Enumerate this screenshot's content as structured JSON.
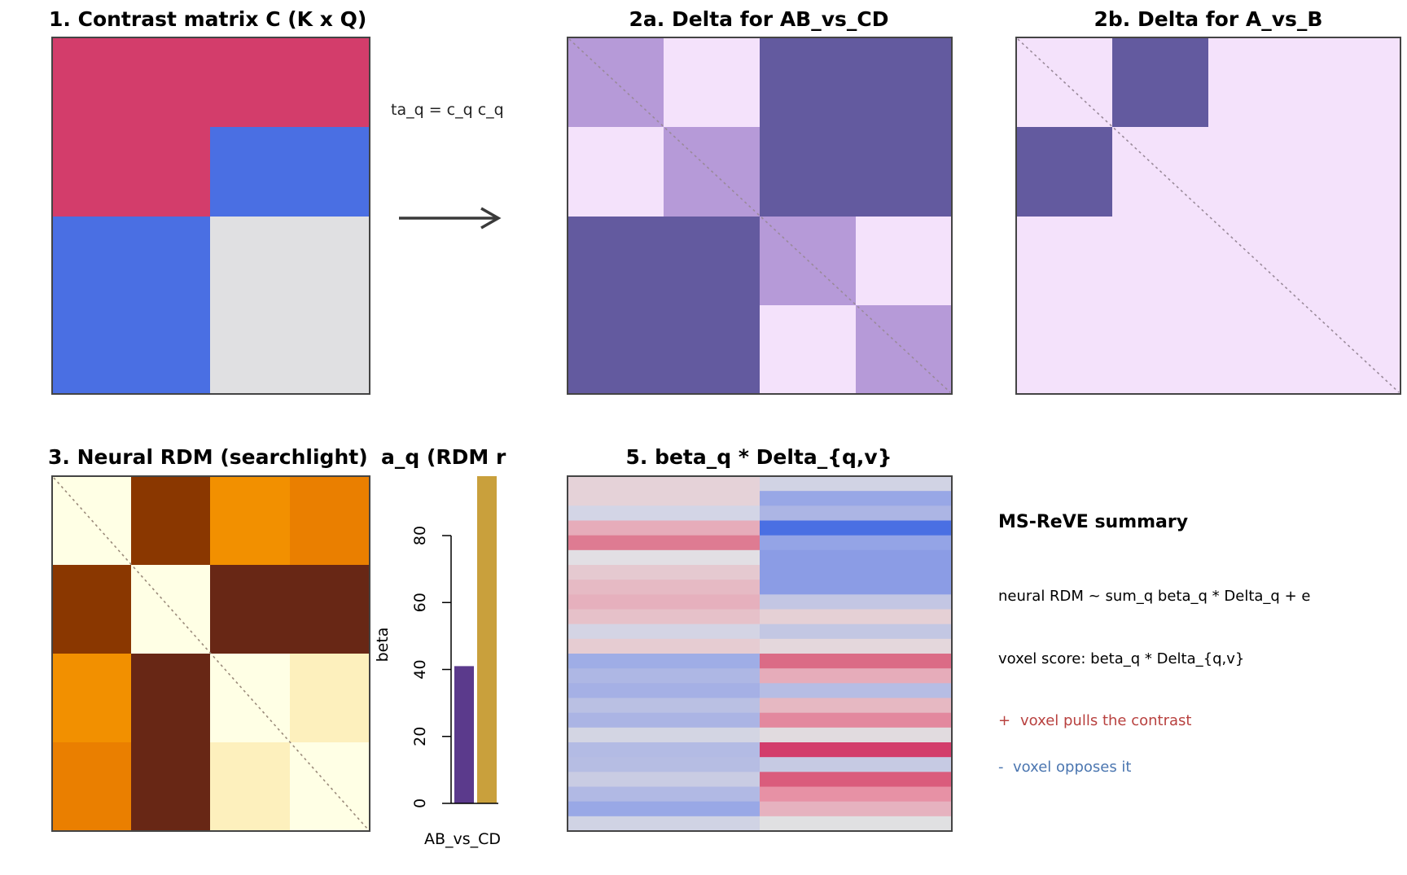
{
  "panels": {
    "contrast": {
      "title": "1. Contrast matrix C (K x Q)"
    },
    "delta_ab": {
      "title": "2a. Delta for AB_vs_CD"
    },
    "delta_a": {
      "title": "2b. Delta for A_vs_B"
    },
    "rdm": {
      "title": "3. Neural RDM (searchlight)"
    },
    "beta": {
      "title": "a_q  (RDM r"
    },
    "voxel": {
      "title": "5. beta_q * Delta_{q,v}"
    }
  },
  "arrow_label": "ta_q = c_q c_q",
  "colors": {
    "red": "#d33d6b",
    "blue": "#4a6fe3",
    "grey": "#e0e0e2",
    "dark_purple": "#635a9f",
    "mid_purple": "#b69ad8",
    "light_purple": "#f4e2fb",
    "bar_purple": "#5b3a8c",
    "bar_gold": "#c9a03c"
  },
  "chart_data": {
    "type": "bar",
    "categories": [
      "",
      ""
    ],
    "values": [
      41,
      98
    ],
    "x_tick_label": "AB_vs_CD",
    "ylabel": "beta",
    "yticks": [
      0,
      20,
      40,
      60,
      80
    ]
  },
  "summary": {
    "title": "MS-ReVE summary",
    "line1": "neural RDM ~ sum_q beta_q * Delta_q + e",
    "line2": "voxel score: beta_q * Delta_{q,v}",
    "plus_symbol": "+",
    "plus_text": "voxel pulls the contrast",
    "minus_symbol": "-",
    "minus_text": "voxel opposes it"
  }
}
